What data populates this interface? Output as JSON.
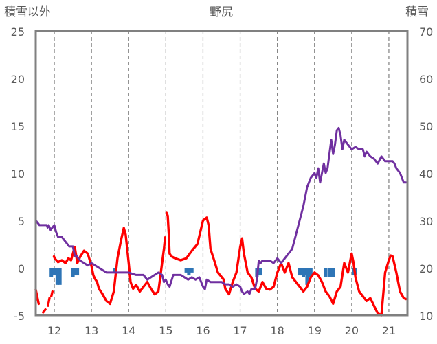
{
  "chart_data": {
    "type": "line",
    "title": "野尻",
    "left_axis_label": "積雪以外",
    "right_axis_label": "積雪",
    "ylim_left": [
      -5,
      25
    ],
    "ylim_right": [
      10,
      70
    ],
    "left_ticks": [
      "25",
      "20",
      "15",
      "10",
      "5",
      "0",
      "-5"
    ],
    "right_ticks": [
      "70",
      "60",
      "50",
      "40",
      "30",
      "20",
      "10"
    ],
    "xlim": [
      11.5,
      21.5
    ],
    "x_ticks": [
      "12",
      "13",
      "14",
      "15",
      "16",
      "17",
      "18",
      "19",
      "20",
      "21"
    ],
    "grid": "vertical dashed",
    "colors": {
      "temperature": "#ff0000",
      "snow_depth": "#7030a0",
      "precipitation": "#2e75b6",
      "grid": "#808080",
      "frame": "#808080"
    },
    "series": [
      {
        "axis": "left",
        "style": "line",
        "x": [
          11.5,
          11.58,
          11.6,
          11.7,
          11.76,
          11.77,
          11.83,
          11.87,
          11.88,
          11.92,
          11.95,
          11.96,
          11.99,
          12.01,
          12.1,
          12.2,
          12.3,
          12.38,
          12.45,
          12.55,
          12.62,
          12.7,
          12.8,
          12.9,
          13.0,
          13.05,
          13.1,
          13.15,
          13.2,
          13.3,
          13.4,
          13.5,
          13.6,
          13.7,
          13.8,
          13.87,
          13.92,
          14.0,
          14.05,
          14.12,
          14.2,
          14.3,
          14.4,
          14.5,
          14.6,
          14.7,
          14.8,
          14.9,
          14.95,
          14.98,
          15.0,
          15.02,
          15.05,
          15.08,
          15.09,
          15.1,
          15.15,
          15.25,
          15.4,
          15.55,
          15.7,
          15.85,
          16.0,
          16.1,
          16.15,
          16.2,
          16.3,
          16.4,
          16.55,
          16.6,
          16.7,
          16.8,
          16.9,
          17.0,
          17.05,
          17.1,
          17.15,
          17.2,
          17.3,
          17.4,
          17.5,
          17.6,
          17.7,
          17.8,
          17.9,
          18.0,
          18.1,
          18.2,
          18.3,
          18.4,
          18.5,
          18.6,
          18.7,
          18.8,
          18.9,
          19.0,
          19.1,
          19.2,
          19.3,
          19.4,
          19.5,
          19.6,
          19.7,
          19.8,
          19.9,
          20.0,
          20.05,
          20.1,
          20.2,
          20.3,
          20.4,
          20.5,
          20.6,
          20.7,
          20.8,
          20.9,
          21.0,
          21.05,
          21.1,
          21.2,
          21.3,
          21.4,
          21.46
        ],
        "values": [
          -2.3,
          -3.8,
          null,
          -4.7,
          -4.4,
          null,
          -4.0,
          -3.2,
          null,
          -3.0,
          -2.5,
          null,
          1.2,
          1.0,
          0.6,
          0.8,
          0.5,
          1.0,
          0.8,
          2.2,
          0.5,
          1.2,
          1.8,
          1.5,
          0.2,
          -0.8,
          -1.2,
          -1.5,
          -2.2,
          -2.8,
          -3.5,
          -3.8,
          -2.5,
          1.0,
          3.0,
          4.2,
          3.5,
          0.5,
          -1.5,
          -2.2,
          -1.8,
          -2.5,
          -2.0,
          -1.5,
          -2.2,
          -2.8,
          -2.5,
          0.5,
          2.0,
          3.2,
          null,
          5.8,
          5.5,
          3.5,
          2.5,
          1.5,
          1.2,
          1.0,
          0.8,
          1.0,
          1.8,
          2.5,
          5.0,
          5.3,
          4.5,
          2.0,
          0.8,
          -0.5,
          -1.2,
          -2.2,
          -2.8,
          -1.5,
          -0.5,
          2.2,
          3.1,
          1.5,
          0.5,
          -0.5,
          -1.0,
          -2.2,
          -2.5,
          -1.5,
          -2.2,
          -2.3,
          -2.0,
          -0.5,
          0.5,
          -0.5,
          0.5,
          -1.0,
          -1.5,
          -2.0,
          -2.5,
          -2.0,
          -1.0,
          -0.5,
          -0.8,
          -1.5,
          -2.5,
          -3.0,
          -3.8,
          -2.5,
          -2.0,
          0.5,
          -0.5,
          1.5,
          0.5,
          -1.0,
          -2.5,
          -3.0,
          -3.5,
          -3.2,
          -4.0,
          -4.8,
          -5.0,
          -0.5,
          0.8,
          1.3,
          1.2,
          -0.5,
          -2.5,
          -3.2,
          -3.3
        ]
      },
      {
        "axis": "right",
        "style": "line",
        "x": [
          11.5,
          11.55,
          11.6,
          11.8,
          11.82,
          11.85,
          11.9,
          11.95,
          12.0,
          12.05,
          12.1,
          12.2,
          12.3,
          12.4,
          12.5,
          12.55,
          12.6,
          12.7,
          12.8,
          12.9,
          13.0,
          13.1,
          13.2,
          13.3,
          13.4,
          13.5,
          13.6,
          13.8,
          14.0,
          14.2,
          14.3,
          14.4,
          14.5,
          14.7,
          14.8,
          14.9,
          14.95,
          15.0,
          15.05,
          15.1,
          15.2,
          15.3,
          15.4,
          15.5,
          15.6,
          15.7,
          15.8,
          15.9,
          16.0,
          16.05,
          16.1,
          16.2,
          16.5,
          16.6,
          16.7,
          16.8,
          16.9,
          17.0,
          17.05,
          17.1,
          17.2,
          17.25,
          17.3,
          17.4,
          17.45,
          17.5,
          17.55,
          17.6,
          17.7,
          17.8,
          17.9,
          18.0,
          18.1,
          18.2,
          18.3,
          18.4,
          18.5,
          18.6,
          18.7,
          18.8,
          18.9,
          19.0,
          19.05,
          19.1,
          19.15,
          19.2,
          19.25,
          19.3,
          19.35,
          19.4,
          19.45,
          19.5,
          19.55,
          19.6,
          19.65,
          19.7,
          19.75,
          19.8,
          19.9,
          20.0,
          20.1,
          20.2,
          20.3,
          20.35,
          20.4,
          20.5,
          20.6,
          20.7,
          20.8,
          20.9,
          21.0,
          21.05,
          21.1,
          21.15,
          21.2,
          21.3,
          21.4,
          21.46
        ],
        "values": [
          30.0,
          29.5,
          29.0,
          29.0,
          28.5,
          29.0,
          28.0,
          28.5,
          29.0,
          27.5,
          26.5,
          26.5,
          25.5,
          24.5,
          24.5,
          22.5,
          22.5,
          21.5,
          21.0,
          20.5,
          21.0,
          20.5,
          20.0,
          19.5,
          19.0,
          19.0,
          19.0,
          19.0,
          19.0,
          18.5,
          18.5,
          18.5,
          17.5,
          18.5,
          19.0,
          18.5,
          17.0,
          17.5,
          16.5,
          16.0,
          18.5,
          18.5,
          18.5,
          18.0,
          17.5,
          18.0,
          17.5,
          18.0,
          16.0,
          15.5,
          17.5,
          17.0,
          17.0,
          16.5,
          16.5,
          16.0,
          16.5,
          16.0,
          15.0,
          14.5,
          15.0,
          14.5,
          15.5,
          15.5,
          17.5,
          21.5,
          21.0,
          21.5,
          21.5,
          21.5,
          21.0,
          22.0,
          21.0,
          22.0,
          23.0,
          24.0,
          27.0,
          30.0,
          33.0,
          37.0,
          39.0,
          40.0,
          39.0,
          41.0,
          38.0,
          40.0,
          42.0,
          40.0,
          41.0,
          44.0,
          47.0,
          44.0,
          46.0,
          49.0,
          49.5,
          48.0,
          45.0,
          47.0,
          46.0,
          45.0,
          45.5,
          45.0,
          45.0,
          43.5,
          44.5,
          43.5,
          43.0,
          42.0,
          43.5,
          42.5,
          42.5,
          42.5,
          42.5,
          42.0,
          41.0,
          40.0,
          38.0,
          38.0
        ]
      },
      {
        "axis": "left",
        "style": "bar",
        "x": [
          11.92,
          12.0,
          12.08,
          12.15,
          12.5,
          12.55,
          12.62,
          13.62,
          15.55,
          15.62,
          15.7,
          17.45,
          17.5,
          17.55,
          18.6,
          18.65,
          18.7,
          18.75,
          18.8,
          18.9,
          19.3,
          19.4,
          19.45,
          19.5,
          20.05,
          20.1
        ],
        "values": [
          -1.0,
          -0.8,
          -1.8,
          -1.8,
          -1.0,
          -0.8,
          -0.8,
          -0.5,
          -0.5,
          -0.8,
          -0.5,
          -1.0,
          -0.8,
          -0.8,
          -0.8,
          -0.8,
          -1.0,
          -0.8,
          -1.8,
          -1.0,
          -1.0,
          -1.0,
          -1.0,
          -1.0,
          -0.8,
          -0.8
        ]
      }
    ]
  }
}
